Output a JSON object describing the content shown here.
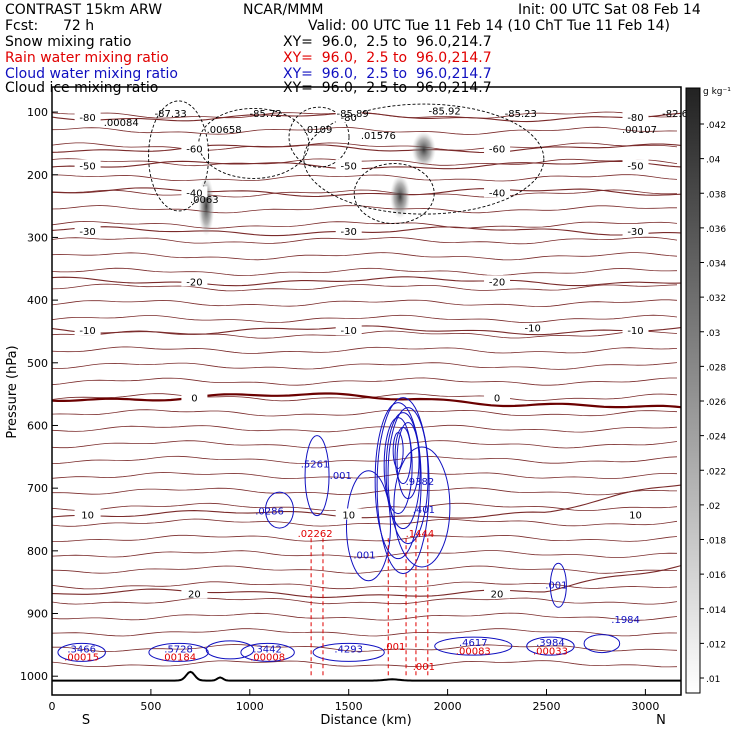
{
  "header": {
    "model": "CONTRAST 15km ARW",
    "fcst_label": "Fcst:",
    "fcst_value": "72 h",
    "org": "NCAR/MMM",
    "init": "Init: 00 UTC Sat 08 Feb 14",
    "valid": "Valid: 00 UTC Tue 11 Feb 14 (10 ChT Tue 11 Feb 14)"
  },
  "legend": [
    {
      "name": "Snow mixing ratio",
      "color": "#000000"
    },
    {
      "name": "Rain water mixing ratio",
      "color": "#e00000"
    },
    {
      "name": "Cloud water mixing ratio",
      "color": "#1010c0"
    },
    {
      "name": "Cloud ice mixing ratio",
      "color": "#000000"
    }
  ],
  "xy_text": "XY=  96.0,  2.5 to  96.0,214.7",
  "chart_data": {
    "type": "contour-cross-section",
    "xlabel": "Distance (km)",
    "ylabel": "Pressure (hPa)",
    "xlim": [
      0,
      3180
    ],
    "ylim": [
      1030,
      60
    ],
    "x_ticks": [
      0,
      500,
      1000,
      1500,
      2000,
      2500,
      3000
    ],
    "x_tick_labels": [
      "0",
      "500",
      "1000",
      "1500",
      "2000",
      "2500",
      "3000"
    ],
    "y_ticks": [
      100,
      200,
      300,
      400,
      500,
      600,
      700,
      800,
      900,
      1000
    ],
    "y_tick_labels": [
      "100",
      "200",
      "300",
      "400",
      "500",
      "600",
      "700",
      "800",
      "900",
      "1000"
    ],
    "x_end_labels": {
      "left": "S",
      "right": "N"
    },
    "temperature_contours": [
      {
        "value": -80,
        "label": "-80",
        "p": 108
      },
      {
        "value": -60,
        "label": "-60",
        "p": 158
      },
      {
        "value": -50,
        "label": "-50",
        "p": 185
      },
      {
        "value": -40,
        "label": "-40",
        "p": 228
      },
      {
        "value": -30,
        "label": "-30",
        "p": 290
      },
      {
        "value": -20,
        "label": "-20",
        "p": 370
      },
      {
        "value": -10,
        "label": "-10",
        "p": 448
      },
      {
        "value": 0,
        "label": "0",
        "p": 555
      },
      {
        "value": 10,
        "label": "10",
        "p": 742
      },
      {
        "value": 20,
        "label": "20",
        "p": 868
      }
    ],
    "annotations": [
      {
        "text": "-87.33",
        "x": 600,
        "p": 108,
        "color": "#000000"
      },
      {
        "text": "-85.72",
        "x": 1080,
        "p": 108,
        "color": "#000000"
      },
      {
        "text": "-85.89",
        "x": 1520,
        "p": 108,
        "color": "#000000"
      },
      {
        "text": "-85.92",
        "x": 1985,
        "p": 104,
        "color": "#000000"
      },
      {
        "text": "-85.23",
        "x": 2370,
        "p": 108,
        "color": "#000000"
      },
      {
        "text": "-82.6",
        "x": 3150,
        "p": 108,
        "color": "#000000"
      },
      {
        "text": ".00084",
        "x": 350,
        "p": 122,
        "color": "#000000"
      },
      {
        "text": ".00658",
        "x": 870,
        "p": 133,
        "color": "#000000"
      },
      {
        "text": ".0109",
        "x": 1345,
        "p": 133,
        "color": "#000000"
      },
      {
        "text": ".01576",
        "x": 1650,
        "p": 143,
        "color": "#000000"
      },
      {
        "text": ".00107",
        "x": 2970,
        "p": 133,
        "color": "#000000"
      },
      {
        "text": ".0063",
        "x": 770,
        "p": 245,
        "color": "#000000"
      },
      {
        "text": "-10",
        "x": 2430,
        "p": 450,
        "color": "#000000"
      },
      {
        "text": ".5261",
        "x": 1330,
        "p": 667,
        "color": "#1010c0"
      },
      {
        "text": ".001",
        "x": 1460,
        "p": 685,
        "color": "#1010c0"
      },
      {
        "text": ".0286",
        "x": 1100,
        "p": 742,
        "color": "#1010c0"
      },
      {
        "text": ".9382",
        "x": 1860,
        "p": 695,
        "color": "#1010c0"
      },
      {
        "text": ".401",
        "x": 1880,
        "p": 740,
        "color": "#1010c0"
      },
      {
        "text": ".02262",
        "x": 1330,
        "p": 778,
        "color": "#e00000"
      },
      {
        "text": ".1444",
        "x": 1860,
        "p": 778,
        "color": "#e00000"
      },
      {
        "text": ".001",
        "x": 1580,
        "p": 812,
        "color": "#1010c0"
      },
      {
        "text": ".001",
        "x": 2550,
        "p": 860,
        "color": "#1010c0"
      },
      {
        "text": ".1984",
        "x": 2900,
        "p": 915,
        "color": "#1010c0"
      },
      {
        "text": ".3466",
        "x": 150,
        "p": 962,
        "color": "#1010c0"
      },
      {
        "text": ".5728",
        "x": 640,
        "p": 962,
        "color": "#1010c0"
      },
      {
        "text": ".3442",
        "x": 1090,
        "p": 962,
        "color": "#1010c0"
      },
      {
        "text": ".4293",
        "x": 1500,
        "p": 962,
        "color": "#1010c0"
      },
      {
        "text": ".4617",
        "x": 2130,
        "p": 952,
        "color": "#1010c0"
      },
      {
        "text": ".3984",
        "x": 2520,
        "p": 952,
        "color": "#1010c0"
      },
      {
        "text": ".00015",
        "x": 150,
        "p": 975,
        "color": "#e00000"
      },
      {
        "text": ".00184",
        "x": 640,
        "p": 975,
        "color": "#e00000"
      },
      {
        "text": ".00008",
        "x": 1090,
        "p": 975,
        "color": "#e00000"
      },
      {
        "text": ".001",
        "x": 1730,
        "p": 958,
        "color": "#e00000"
      },
      {
        "text": ".00083",
        "x": 2130,
        "p": 965,
        "color": "#e00000"
      },
      {
        "text": ".00033",
        "x": 2520,
        "p": 965,
        "color": "#e00000"
      },
      {
        "text": ".001",
        "x": 1880,
        "p": 990,
        "color": "#e00000"
      }
    ],
    "colorbar": {
      "unit": "g kg⁻¹",
      "ticks": [
        ".042",
        ".04",
        ".038",
        ".036",
        ".034",
        ".032",
        ".03",
        ".028",
        ".026",
        ".024",
        ".022",
        ".02",
        ".018",
        ".016",
        ".014",
        ".012",
        ".01"
      ],
      "min": 0.01,
      "max": 0.044
    }
  }
}
